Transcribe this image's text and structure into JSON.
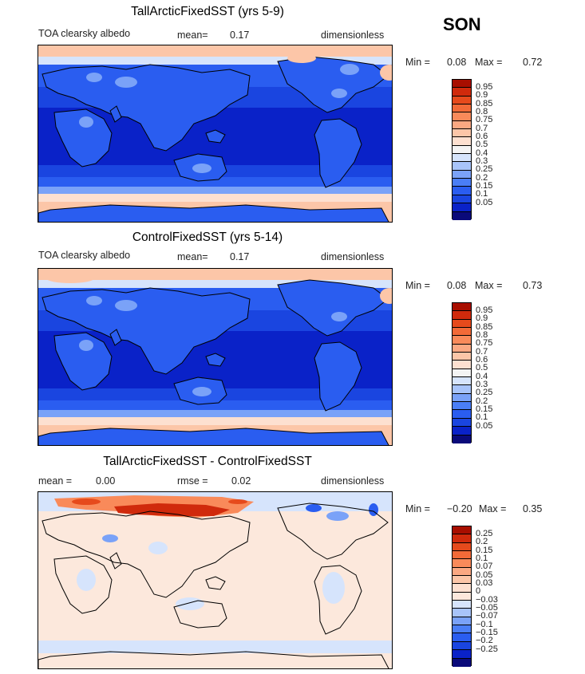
{
  "season": "SON",
  "colors": {
    "abs_scale": [
      "#0a0a7a",
      "#0a22c8",
      "#1a45e0",
      "#2a5df0",
      "#4a7ef6",
      "#7aa2f8",
      "#a8c4fa",
      "#d6e4fc",
      "#f4f4f4",
      "#fde0d0",
      "#fcc6a8",
      "#fba882",
      "#f98a5a",
      "#f26a38",
      "#e64a1c",
      "#d02a0c",
      "#a80e00"
    ],
    "diff_scale": [
      "#0a0a7a",
      "#0a22c8",
      "#1a45e0",
      "#2a5df0",
      "#4a7ef6",
      "#7aa2f8",
      "#a8c4fa",
      "#d6e4fc",
      "#fce8dc",
      "#fde0d0",
      "#fcc6a8",
      "#fba882",
      "#f98a5a",
      "#f26a38",
      "#e64a1c",
      "#d02a0c",
      "#a80e00"
    ]
  },
  "panels": [
    {
      "title": "TallArcticFixedSST (yrs 5-9)",
      "left_label": "TOA clearsky albedo",
      "mean_label": "mean=",
      "mean_value": "0.17",
      "units": "dimensionless",
      "min_label": "Min =",
      "min_value": "0.08",
      "max_label": "Max =",
      "max_value": "0.72",
      "colorbar_labels": [
        "0.95",
        "0.9",
        "0.85",
        "0.8",
        "0.75",
        "0.7",
        "0.6",
        "0.5",
        "0.4",
        "0.3",
        "0.25",
        "0.2",
        "0.15",
        "0.1",
        "0.05"
      ],
      "style": "abs"
    },
    {
      "title": "ControlFixedSST (yrs 5-14)",
      "left_label": "TOA clearsky albedo",
      "mean_label": "mean=",
      "mean_value": "0.17",
      "units": "dimensionless",
      "min_label": "Min =",
      "min_value": "0.08",
      "max_label": "Max =",
      "max_value": "0.73",
      "colorbar_labels": [
        "0.95",
        "0.9",
        "0.85",
        "0.8",
        "0.75",
        "0.7",
        "0.6",
        "0.5",
        "0.4",
        "0.3",
        "0.25",
        "0.2",
        "0.15",
        "0.1",
        "0.05"
      ],
      "style": "abs"
    },
    {
      "title": "TallArcticFixedSST - ControlFixedSST",
      "left_label": "mean =",
      "mean_label": "0.00",
      "rmse_label": "rmse =",
      "rmse_value": "0.02",
      "units": "dimensionless",
      "min_label": "Min =",
      "min_value": "−0.20",
      "max_label": "Max =",
      "max_value": "0.35",
      "colorbar_labels": [
        "0.25",
        "0.2",
        "0.15",
        "0.1",
        "0.07",
        "0.05",
        "0.03",
        "0",
        "−0.03",
        "−0.05",
        "−0.07",
        "−0.1",
        "−0.15",
        "−0.2",
        "−0.25"
      ],
      "style": "diff"
    }
  ]
}
